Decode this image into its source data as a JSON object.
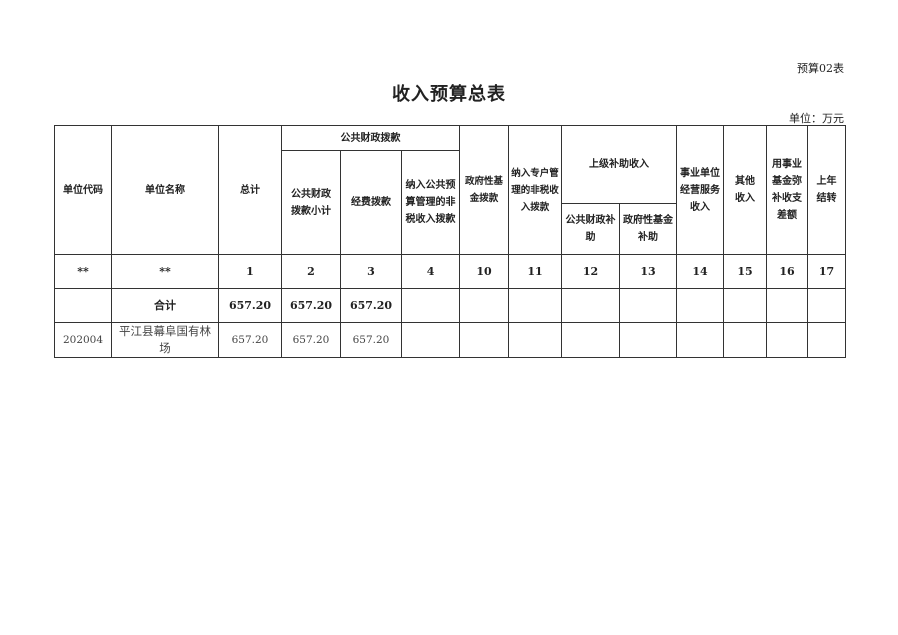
{
  "form_no": "预算02表",
  "title": "收入预算总表",
  "unit": "单位：万元",
  "headers": {
    "code": "单位代码",
    "name": "单位名称",
    "total": "总计",
    "public_finance": "公共财政拨款",
    "pf_subtotal": "公共财政\n拨款小计",
    "pf_funds": "经费拨款",
    "pf_nontax": "纳入公共预\n算管理的非\n税收入拨款",
    "gov_fund": "政府性基\n金拨款",
    "special_nontax": "纳入专户管\n理的非税收\n入拨款",
    "superior": "上级补助收入",
    "sup_public": "公共财政补\n助",
    "sup_gov": "政府性基金\n补助",
    "business": "事业单位\n经营服务\n收入",
    "other": "其他\n收入",
    "reserve": "用事业\n基金弥\n补收支\n差额",
    "carryover": "上年\n结转"
  },
  "index_row": [
    "**",
    "**",
    "1",
    "2",
    "3",
    "4",
    "10",
    "11",
    "12",
    "13",
    "14",
    "15",
    "16",
    "17"
  ],
  "rows": [
    {
      "code": "",
      "name": "合计",
      "values": [
        "657.20",
        "657.20",
        "657.20",
        "",
        "",
        "",
        "",
        "",
        "",
        "",
        "",
        "",
        ""
      ]
    },
    {
      "code": "202004",
      "name": "平江县幕阜国有林场",
      "values": [
        "657.20",
        "657.20",
        "657.20",
        "",
        "",
        "",
        "",
        "",
        "",
        "",
        "",
        "",
        ""
      ]
    }
  ]
}
